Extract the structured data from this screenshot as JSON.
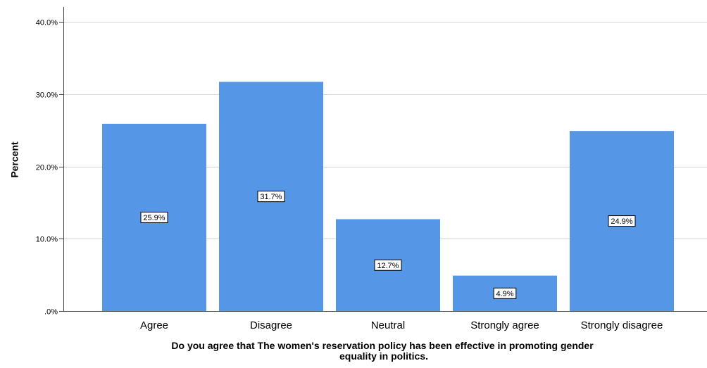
{
  "chart_data": {
    "type": "bar",
    "title": "",
    "xlabel": "Do you agree that The women's reservation policy has been effective in promoting gender equality in politics.",
    "xlabel_lines": [
      "Do you agree that The women's reservation policy has been effective in promoting gender",
      "equality in politics."
    ],
    "ylabel": "Percent",
    "categories": [
      "Agree",
      "Disagree",
      "Neutral",
      "Strongly agree",
      "Strongly disagree"
    ],
    "values": [
      25.9,
      31.7,
      12.7,
      4.9,
      24.9
    ],
    "data_labels": [
      "25.9%",
      "31.7%",
      "12.7%",
      "4.9%",
      "24.9%"
    ],
    "ylim": [
      0,
      40
    ],
    "yticks": [
      0,
      10,
      20,
      30,
      40
    ],
    "ytick_labels": [
      ".0%",
      "10.0%",
      "20.0%",
      "30.0%",
      "40.0%"
    ],
    "grid": true,
    "legend": "none",
    "colors": {
      "bar": "#5596e6",
      "grid": "#d4d4d4",
      "axis": "#444444",
      "text": "#000000"
    }
  }
}
